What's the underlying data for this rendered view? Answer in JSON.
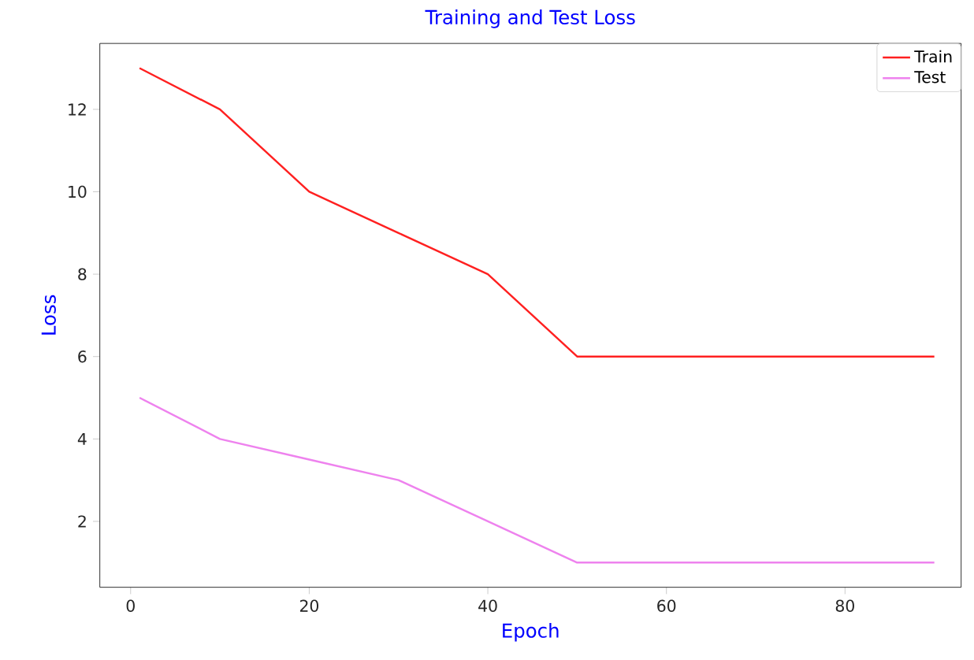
{
  "chart_data": {
    "type": "line",
    "title": "Training and Test Loss",
    "xlabel": "Epoch",
    "ylabel": "Loss",
    "x": [
      1,
      10,
      20,
      30,
      40,
      50,
      60,
      70,
      80,
      90
    ],
    "series": [
      {
        "name": "Train",
        "color": "#ff2020",
        "values": [
          13,
          12,
          10,
          9,
          8,
          6,
          6,
          6,
          6,
          6
        ]
      },
      {
        "name": "Test",
        "color": "#ee82ee",
        "values": [
          5,
          4,
          3.5,
          3,
          2,
          1,
          1,
          1,
          1,
          1
        ]
      }
    ],
    "xlim": [
      -3.45,
      93
    ],
    "ylim": [
      0.4,
      13.6
    ],
    "xticks": [
      0,
      20,
      40,
      60,
      80
    ],
    "yticks": [
      2,
      4,
      6,
      8,
      10,
      12
    ],
    "legend": "top right",
    "grid": false,
    "marker": "none",
    "line_style": "solid"
  }
}
